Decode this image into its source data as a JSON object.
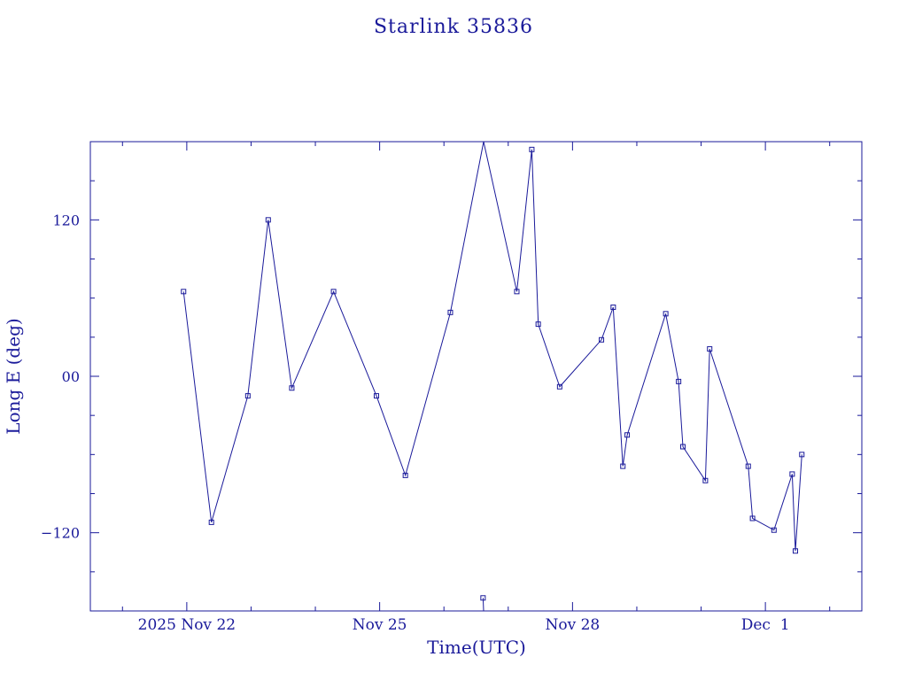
{
  "chart_data": {
    "type": "line",
    "title": "Starlink 35836",
    "xlabel": "Time(UTC)",
    "ylabel": "Long E (deg)",
    "x_tick_labels": [
      "2025 Nov 22",
      "Nov 25",
      "Nov 28",
      "Dec  1"
    ],
    "y_tick_labels": [
      "120",
      "00",
      "−120"
    ],
    "xlim": [
      "2025-11-20T12:00",
      "2025-12-02T12:00"
    ],
    "ylim": [
      -180,
      180
    ],
    "grid": false,
    "colors": {
      "line": "#1a1a9a",
      "axes": "#1a1a9a"
    },
    "series": [
      {
        "points": [
          [
            "2025-11-21T22:48",
            65
          ],
          [
            "2025-11-22T09:12",
            -112
          ],
          [
            "2025-11-22T22:48",
            -15
          ],
          [
            "2025-11-23T06:24",
            120
          ],
          [
            "2025-11-23T15:12",
            -9
          ],
          [
            "2025-11-24T06:48",
            65
          ],
          [
            "2025-11-24T22:48",
            -15
          ],
          [
            "2025-11-25T09:36",
            -76
          ],
          [
            "2025-11-26T02:24",
            49
          ],
          [
            "2025-11-26T14:48",
            180
          ],
          [
            "2025-11-27T03:12",
            65
          ],
          [
            "2025-11-27T08:48",
            174
          ],
          [
            "2025-11-27T11:12",
            40
          ],
          [
            "2025-11-27T19:12",
            -8
          ],
          [
            "2025-11-28T10:48",
            28
          ],
          [
            "2025-11-28T15:12",
            53
          ],
          [
            "2025-11-28T18:48",
            -69
          ],
          [
            "2025-11-28T20:24",
            -45
          ],
          [
            "2025-11-29T10:48",
            48
          ],
          [
            "2025-11-29T15:36",
            -4
          ],
          [
            "2025-11-29T17:12",
            -54
          ],
          [
            "2025-11-30T01:36",
            -80
          ],
          [
            "2025-11-30T03:12",
            21
          ],
          [
            "2025-11-30T17:36",
            -69
          ],
          [
            "2025-11-30T19:12",
            -109
          ],
          [
            "2025-12-01T03:12",
            -118
          ],
          [
            "2025-12-01T10:00",
            -75
          ],
          [
            "2025-12-01T11:12",
            -134
          ],
          [
            "2025-12-01T13:36",
            -60
          ]
        ]
      },
      {
        "points": [
          [
            "2025-11-26T14:36",
            -170
          ],
          [
            "2025-11-26T14:48",
            -180
          ]
        ]
      }
    ]
  }
}
